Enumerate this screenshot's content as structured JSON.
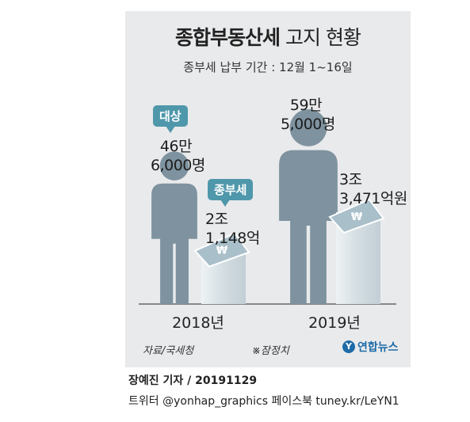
{
  "title_bold": "종합부동산세",
  "title_rest": "고지 현황",
  "subtitle": "종부세 납부 기간 : 12월 1~16일",
  "labels": {
    "target_bubble": "대상",
    "tax_bubble": "종부세"
  },
  "chart_data": {
    "type": "pictograph",
    "categories": [
      "2018년",
      "2019년"
    ],
    "series": [
      {
        "name": "대상",
        "values": [
          466000,
          595000
        ],
        "labels": [
          [
            "46만",
            "6,000명"
          ],
          [
            "59만",
            "5,000명"
          ]
        ]
      },
      {
        "name": "종부세",
        "values": [
          21148,
          33471
        ],
        "unit": "억원",
        "labels": [
          [
            "2조",
            "1,148억"
          ],
          [
            "3조",
            "3,471억원"
          ]
        ]
      }
    ]
  },
  "source": "자료/국세청",
  "footnote": "※잠정치",
  "logo_text": "연합뉴스",
  "logo_mark": "Y",
  "credit_line1": "장예진 기자 / 20191129",
  "credit_line2": "트위터 @yonhap_graphics  페이스북 tuney.kr/LeYN1",
  "colors": {
    "figure": "#7e939f",
    "money": "#a9bfca",
    "column": "#d6dfe4",
    "bubble": "#4f97ab"
  }
}
